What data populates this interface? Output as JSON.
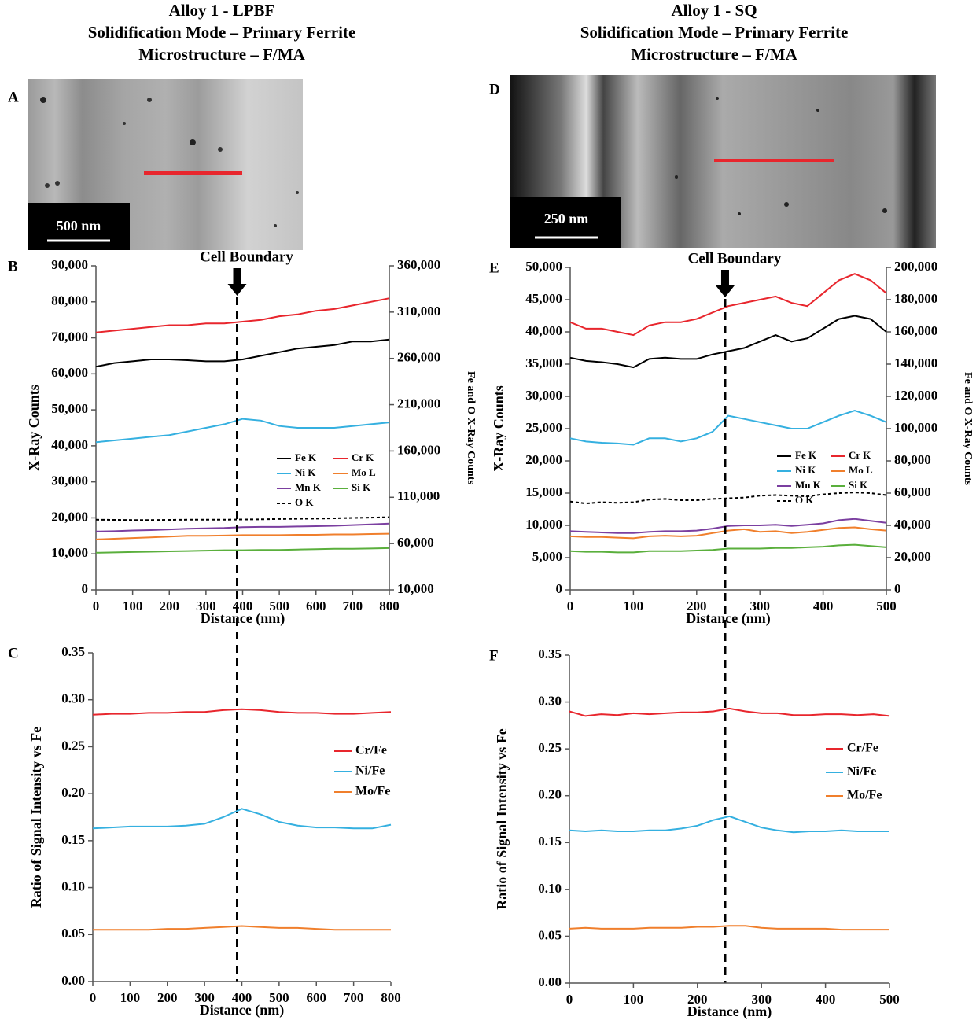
{
  "columns": [
    {
      "title_lines": [
        "Alloy 1 - LPBF",
        "Solidification Mode – Primary Ferrite",
        "Microstructure – F/MA"
      ],
      "image_label": "A",
      "scale_bar": "500 nm"
    },
    {
      "title_lines": [
        "Alloy 1 - SQ",
        "Solidification Mode – Primary Ferrite",
        "Microstructure – F/MA"
      ],
      "image_label": "D",
      "scale_bar": "250 nm"
    }
  ],
  "chart_data": [
    {
      "type": "line",
      "panel": "B",
      "xlabel": "Distance (nm)",
      "ylabel": "X-Ray Counts",
      "y2label": "Fe and O X-Ray Counts",
      "legend": "right",
      "annotation": {
        "text": "Cell Boundary",
        "x": 385
      },
      "x": [
        0,
        50,
        100,
        150,
        200,
        250,
        300,
        350,
        400,
        450,
        500,
        550,
        600,
        650,
        700,
        750,
        800
      ],
      "xlim": [
        0,
        800
      ],
      "xticks": [
        0,
        100,
        200,
        300,
        400,
        500,
        600,
        700,
        800
      ],
      "ylim": [
        0,
        90000
      ],
      "yticks": [
        0,
        {
          "value": 10000,
          "label": "10,000"
        },
        {
          "value": 20000,
          "label": "20,000"
        },
        {
          "value": 30000,
          "label": "30,000"
        },
        {
          "value": 40000,
          "label": "40,000"
        },
        {
          "value": 50000,
          "label": "50,000"
        },
        {
          "value": 60000,
          "label": "60,000"
        },
        {
          "value": 70000,
          "label": "70,000"
        },
        {
          "value": 80000,
          "label": "80,000"
        },
        {
          "value": 90000,
          "label": "90,000"
        }
      ],
      "y2lim": [
        10000,
        360000
      ],
      "y2ticks": [
        {
          "value": 10000,
          "label": "10,000"
        },
        {
          "value": 60000,
          "label": "60,000"
        },
        {
          "value": 110000,
          "label": "110,000"
        },
        {
          "value": 160000,
          "label": "160,000"
        },
        {
          "value": 210000,
          "label": "210,000"
        },
        {
          "value": 260000,
          "label": "260,000"
        },
        {
          "value": 310000,
          "label": "310,000"
        },
        {
          "value": 360000,
          "label": "360,000"
        }
      ],
      "series": [
        {
          "name": "Fe K",
          "color": "#000000",
          "axis": "y2",
          "values": [
            251100,
            255000,
            256900,
            258900,
            258900,
            258100,
            256900,
            256900,
            258900,
            262800,
            266700,
            270600,
            272500,
            274400,
            278300,
            278300,
            280300
          ]
        },
        {
          "name": "Cr K",
          "color": "#e8262d",
          "values": [
            71500,
            72000,
            72500,
            73000,
            73500,
            73500,
            74000,
            74000,
            74500,
            75000,
            76000,
            76500,
            77500,
            78000,
            79000,
            80000,
            81000
          ]
        },
        {
          "name": "Ni K",
          "color": "#35b0e0",
          "values": [
            41000,
            41500,
            42000,
            42500,
            43000,
            44000,
            45000,
            46000,
            47500,
            47000,
            45500,
            45000,
            45000,
            45000,
            45500,
            46000,
            46500
          ]
        },
        {
          "name": "Mo L",
          "color": "#f07f2c",
          "values": [
            14000,
            14200,
            14400,
            14600,
            14800,
            15000,
            15000,
            15100,
            15200,
            15200,
            15200,
            15300,
            15300,
            15400,
            15400,
            15500,
            15600
          ]
        },
        {
          "name": "Mn K",
          "color": "#7b3fa0",
          "values": [
            16200,
            16300,
            16500,
            16600,
            16800,
            17000,
            17100,
            17200,
            17400,
            17500,
            17500,
            17600,
            17700,
            17800,
            18000,
            18200,
            18400
          ]
        },
        {
          "name": "Si K",
          "color": "#5aaf3c",
          "values": [
            10300,
            10400,
            10500,
            10600,
            10700,
            10800,
            10900,
            11000,
            11000,
            11100,
            11100,
            11200,
            11300,
            11400,
            11400,
            11500,
            11600
          ]
        },
        {
          "name": "O  K",
          "color": "#000000",
          "axis": "y2",
          "dashed": true,
          "values": [
            85800,
            85600,
            85400,
            85400,
            85600,
            85800,
            85800,
            85800,
            86000,
            86200,
            86500,
            86800,
            87000,
            87300,
            87700,
            88100,
            88500
          ]
        }
      ]
    },
    {
      "type": "line",
      "panel": "C",
      "xlabel": "Distance (nm)",
      "ylabel": "Ratio of Signal Intensity vs Fe",
      "legend": "right",
      "x": [
        0,
        50,
        100,
        150,
        200,
        250,
        300,
        350,
        400,
        450,
        500,
        550,
        600,
        650,
        700,
        750,
        800
      ],
      "xlim": [
        0,
        800
      ],
      "xticks": [
        0,
        100,
        200,
        300,
        400,
        500,
        600,
        700,
        800
      ],
      "ylim": [
        0,
        0.35
      ],
      "yticks": [
        {
          "value": 0,
          "label": "0.00"
        },
        0.05,
        {
          "value": 0.1,
          "label": "0.10"
        },
        0.15,
        {
          "value": 0.2,
          "label": "0.20"
        },
        0.25,
        {
          "value": 0.3,
          "label": "0.30"
        },
        0.35
      ],
      "series": [
        {
          "name": "Cr/Fe",
          "color": "#e8262d",
          "values": [
            0.284,
            0.285,
            0.285,
            0.286,
            0.286,
            0.287,
            0.287,
            0.289,
            0.29,
            0.289,
            0.287,
            0.286,
            0.286,
            0.285,
            0.285,
            0.286,
            0.287
          ]
        },
        {
          "name": "Ni/Fe",
          "color": "#35b0e0",
          "values": [
            0.163,
            0.164,
            0.165,
            0.165,
            0.165,
            0.166,
            0.168,
            0.175,
            0.184,
            0.178,
            0.17,
            0.166,
            0.164,
            0.164,
            0.163,
            0.163,
            0.167
          ]
        },
        {
          "name": "Mo/Fe",
          "color": "#f07f2c",
          "values": [
            0.055,
            0.055,
            0.055,
            0.055,
            0.056,
            0.056,
            0.057,
            0.058,
            0.059,
            0.058,
            0.057,
            0.057,
            0.056,
            0.055,
            0.055,
            0.055,
            0.055
          ]
        }
      ]
    },
    {
      "type": "line",
      "panel": "E",
      "xlabel": "Distance (nm)",
      "ylabel": "X-Ray Counts",
      "y2label": "Fe and O X-Ray Counts",
      "legend": "right",
      "annotation": {
        "text": "Cell Boundary",
        "x": 245
      },
      "x": [
        0,
        25,
        50,
        75,
        100,
        125,
        150,
        175,
        200,
        225,
        250,
        275,
        300,
        325,
        350,
        375,
        400,
        425,
        450,
        475,
        500
      ],
      "xlim": [
        0,
        500
      ],
      "xticks": [
        0,
        100,
        200,
        300,
        400,
        500
      ],
      "ylim": [
        0,
        50000
      ],
      "yticks": [
        0,
        {
          "value": 5000,
          "label": "5,000"
        },
        {
          "value": 10000,
          "label": "10,000"
        },
        {
          "value": 15000,
          "label": "15,000"
        },
        {
          "value": 20000,
          "label": "20,000"
        },
        {
          "value": 25000,
          "label": "25,000"
        },
        {
          "value": 30000,
          "label": "30,000"
        },
        {
          "value": 35000,
          "label": "35,000"
        },
        {
          "value": 40000,
          "label": "40,000"
        },
        {
          "value": 45000,
          "label": "45,000"
        },
        {
          "value": 50000,
          "label": "50,000"
        }
      ],
      "y2lim": [
        0,
        200000
      ],
      "y2ticks": [
        0,
        {
          "value": 20000,
          "label": "20,000"
        },
        {
          "value": 40000,
          "label": "40,000"
        },
        {
          "value": 60000,
          "label": "60,000"
        },
        {
          "value": 80000,
          "label": "80,000"
        },
        {
          "value": 100000,
          "label": "100,000"
        },
        {
          "value": 120000,
          "label": "120,000"
        },
        {
          "value": 140000,
          "label": "140,000"
        },
        {
          "value": 160000,
          "label": "160,000"
        },
        {
          "value": 180000,
          "label": "180,000"
        },
        {
          "value": 200000,
          "label": "200,000"
        }
      ],
      "series": [
        {
          "name": "Fe K",
          "color": "#000000",
          "axis": "y2",
          "values": [
            144000,
            142000,
            141200,
            140000,
            138000,
            143200,
            144000,
            143200,
            143200,
            146000,
            148000,
            150000,
            154000,
            158000,
            154000,
            156000,
            162000,
            168000,
            170000,
            168000,
            160000
          ]
        },
        {
          "name": "Cr K",
          "color": "#e8262d",
          "values": [
            41500,
            40500,
            40500,
            40000,
            39500,
            41000,
            41500,
            41500,
            42000,
            43000,
            44000,
            44500,
            45000,
            45500,
            44500,
            44000,
            46000,
            48000,
            49000,
            48000,
            46000
          ]
        },
        {
          "name": "Ni K",
          "color": "#35b0e0",
          "values": [
            23500,
            23000,
            22800,
            22700,
            22500,
            23500,
            23500,
            23000,
            23500,
            24500,
            27000,
            26500,
            26000,
            25500,
            25000,
            25000,
            26000,
            27000,
            27800,
            27000,
            26000
          ]
        },
        {
          "name": "Mo L",
          "color": "#f07f2c",
          "values": [
            8300,
            8200,
            8200,
            8100,
            8000,
            8300,
            8400,
            8300,
            8400,
            8800,
            9200,
            9400,
            9000,
            9100,
            8800,
            9000,
            9300,
            9600,
            9700,
            9400,
            9200
          ]
        },
        {
          "name": "Mn K",
          "color": "#7b3fa0",
          "values": [
            9100,
            9000,
            8900,
            8800,
            8800,
            9000,
            9100,
            9100,
            9200,
            9500,
            9900,
            10000,
            10000,
            10100,
            9900,
            10100,
            10300,
            10800,
            11000,
            10700,
            10400
          ]
        },
        {
          "name": "Si K",
          "color": "#5aaf3c",
          "values": [
            6000,
            5900,
            5900,
            5800,
            5800,
            6000,
            6000,
            6000,
            6100,
            6200,
            6400,
            6400,
            6400,
            6500,
            6500,
            6600,
            6700,
            6900,
            7000,
            6800,
            6600
          ]
        },
        {
          "name": "O  K",
          "color": "#000000",
          "axis": "y2",
          "dashed": true,
          "values": [
            54800,
            53600,
            54400,
            54000,
            54400,
            56000,
            56400,
            55600,
            55600,
            56400,
            56800,
            57200,
            58400,
            58800,
            58400,
            58000,
            59200,
            60000,
            60400,
            60000,
            58800
          ]
        }
      ]
    },
    {
      "type": "line",
      "panel": "F",
      "xlabel": "Distance (nm)",
      "ylabel": "Ratio of Signal Intensity vs Fe",
      "legend": "right",
      "x": [
        0,
        25,
        50,
        75,
        100,
        125,
        150,
        175,
        200,
        225,
        250,
        275,
        300,
        325,
        350,
        375,
        400,
        425,
        450,
        475,
        500
      ],
      "xlim": [
        0,
        500
      ],
      "xticks": [
        0,
        100,
        200,
        300,
        400,
        500
      ],
      "ylim": [
        0,
        0.35
      ],
      "yticks": [
        {
          "value": 0,
          "label": "0.00"
        },
        0.05,
        {
          "value": 0.1,
          "label": "0.10"
        },
        0.15,
        {
          "value": 0.2,
          "label": "0.20"
        },
        0.25,
        {
          "value": 0.3,
          "label": "0.30"
        },
        0.35
      ],
      "series": [
        {
          "name": "Cr/Fe",
          "color": "#e8262d",
          "values": [
            0.29,
            0.285,
            0.287,
            0.286,
            0.288,
            0.287,
            0.288,
            0.289,
            0.289,
            0.29,
            0.293,
            0.29,
            0.288,
            0.288,
            0.286,
            0.286,
            0.287,
            0.287,
            0.286,
            0.287,
            0.285
          ]
        },
        {
          "name": "Ni/Fe",
          "color": "#35b0e0",
          "values": [
            0.163,
            0.162,
            0.163,
            0.162,
            0.162,
            0.163,
            0.163,
            0.165,
            0.168,
            0.174,
            0.178,
            0.172,
            0.166,
            0.163,
            0.161,
            0.162,
            0.162,
            0.163,
            0.162,
            0.162,
            0.162
          ]
        },
        {
          "name": "Mo/Fe",
          "color": "#f07f2c",
          "values": [
            0.058,
            0.059,
            0.058,
            0.058,
            0.058,
            0.059,
            0.059,
            0.059,
            0.06,
            0.06,
            0.061,
            0.061,
            0.059,
            0.058,
            0.058,
            0.058,
            0.058,
            0.057,
            0.057,
            0.057,
            0.057
          ]
        }
      ]
    }
  ]
}
